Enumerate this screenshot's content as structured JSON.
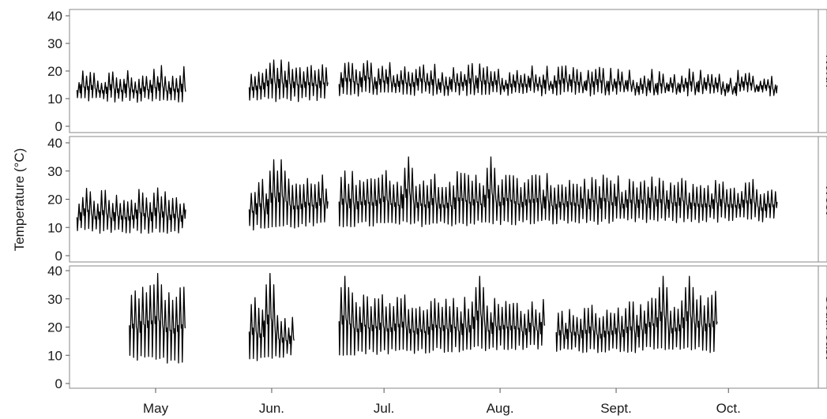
{
  "chart_data": {
    "type": "line",
    "ylabel": "Temperature (°C)",
    "xlabel": "",
    "ylim": [
      0,
      40
    ],
    "y_ticks": [
      "0",
      "10",
      "20",
      "30",
      "40"
    ],
    "x_tick_labels": [
      "May",
      "Jun.",
      "Jul.",
      "Aug.",
      "Sept.",
      "Oct."
    ],
    "x_tick_dates": [
      "05-01",
      "06-01",
      "07-01",
      "08-01",
      "09-01",
      "10-01"
    ],
    "x_range_dates": [
      "04-08",
      "10-25"
    ],
    "line_color": "#000000",
    "facet_strip_side": "right",
    "panels": [
      {
        "facet_label": "North",
        "segments": [
          {
            "start": "04-10",
            "end": "05-09",
            "min": [
              10,
              9
            ],
            "max": [
              17,
              19
            ],
            "peak_days": [
              "05-02"
            ],
            "peak_max": 22
          },
          {
            "start": "05-26",
            "end": "06-16",
            "min": [
              10,
              10
            ],
            "max": [
              21,
              20
            ],
            "peak_days": [
              "06-01",
              "06-03"
            ],
            "peak_max": 24
          },
          {
            "start": "06-19",
            "end": "10-14",
            "min": [
              12,
              12
            ],
            "max": [
              21,
              17
            ],
            "peak_days": [],
            "peak_max": 0
          }
        ]
      },
      {
        "facet_label": "West",
        "segments": [
          {
            "start": "04-10",
            "end": "05-09",
            "min": [
              9,
              9
            ],
            "max": [
              21,
              21
            ],
            "peak_days": [
              "05-01"
            ],
            "peak_max": 24
          },
          {
            "start": "05-26",
            "end": "06-16",
            "min": [
              10,
              11
            ],
            "max": [
              24,
              26
            ],
            "peak_days": [
              "06-01",
              "06-03"
            ],
            "peak_max": 34
          },
          {
            "start": "06-19",
            "end": "10-14",
            "min": [
              11,
              13
            ],
            "max": [
              28,
              24
            ],
            "peak_days": [
              "07-07",
              "07-29"
            ],
            "peak_max": 35
          }
        ]
      },
      {
        "facet_label": "South east",
        "segments": [
          {
            "start": "04-24",
            "end": "05-09",
            "min": [
              9,
              8
            ],
            "max": [
              33,
              32
            ],
            "peak_days": [
              "05-01"
            ],
            "peak_max": 39
          },
          {
            "start": "05-26",
            "end": "06-07",
            "min": [
              9,
              10
            ],
            "max": [
              30,
              20
            ],
            "peak_days": [
              "05-31"
            ],
            "peak_max": 39
          },
          {
            "start": "06-19",
            "end": "08-13",
            "min": [
              11,
              13
            ],
            "max": [
              30,
              27
            ],
            "peak_days": [
              "06-20",
              "07-26"
            ],
            "peak_max": 38
          },
          {
            "start": "08-16",
            "end": "09-28",
            "min": [
              12,
              12
            ],
            "max": [
              24,
              30
            ],
            "peak_days": [
              "09-13",
              "09-20"
            ],
            "peak_max": 38
          }
        ]
      }
    ]
  }
}
